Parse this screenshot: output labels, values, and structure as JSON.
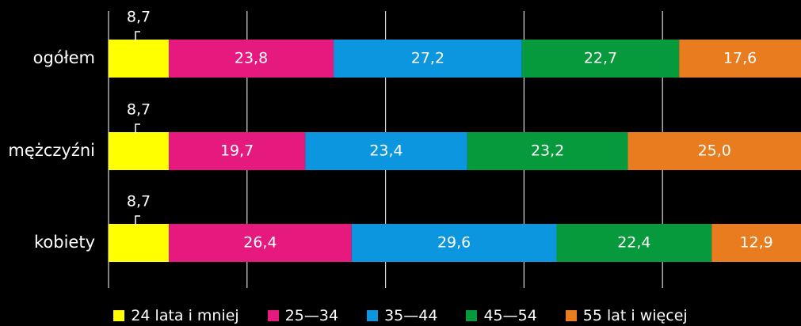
{
  "chart_data": {
    "type": "bar",
    "orientation": "horizontal",
    "stacked": true,
    "categories": [
      "ogółem",
      "mężczyźni",
      "kobiety"
    ],
    "series": [
      {
        "name": "24 lata i mniej",
        "color": "#ffff00",
        "values": [
          8.7,
          8.7,
          8.7
        ],
        "labels": [
          "8,7",
          "8,7",
          "8,7"
        ]
      },
      {
        "name": "25—34",
        "color": "#e5197e",
        "values": [
          23.8,
          19.7,
          26.4
        ],
        "labels": [
          "23,8",
          "19,7",
          "26,4"
        ]
      },
      {
        "name": "35—44",
        "color": "#0c96e0",
        "values": [
          27.2,
          23.4,
          29.6
        ],
        "labels": [
          "27,2",
          "23,4",
          "29,6"
        ]
      },
      {
        "name": "45—54",
        "color": "#079a3c",
        "values": [
          22.7,
          23.2,
          22.4
        ],
        "labels": [
          "22,7",
          "23,2",
          "22,4"
        ]
      },
      {
        "name": "55 lat i więcej",
        "color": "#e87c1e",
        "values": [
          17.6,
          25.0,
          12.9
        ],
        "labels": [
          "17,6",
          "25,0",
          "12,9"
        ]
      }
    ],
    "xlim": [
      0,
      100
    ],
    "grid": true,
    "legend_position": "bottom",
    "title": "",
    "xlabel": "",
    "ylabel": ""
  }
}
